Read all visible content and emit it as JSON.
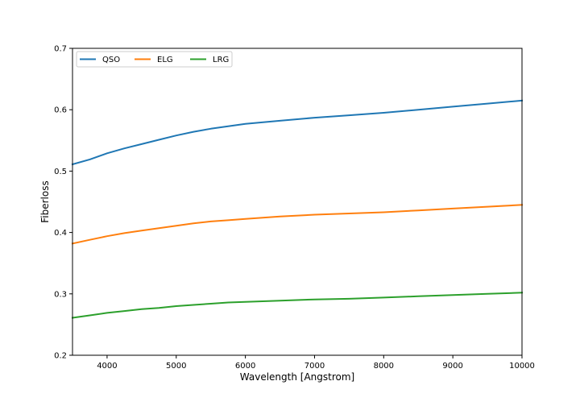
{
  "chart_data": {
    "type": "line",
    "title": "",
    "xlabel": "Wavelength [Angstrom]",
    "ylabel": "Fiberloss",
    "xlim": [
      3500,
      10000
    ],
    "ylim": [
      0.2,
      0.7
    ],
    "xticks": [
      4000,
      5000,
      6000,
      7000,
      8000,
      9000,
      10000
    ],
    "yticks": [
      0.2,
      0.3,
      0.4,
      0.5,
      0.6,
      0.7
    ],
    "grid": false,
    "legend_position": "top-left",
    "legend_columns": 3,
    "series": [
      {
        "name": "QSO",
        "color": "#1f77b4",
        "x": [
          3500,
          3750,
          4000,
          4250,
          4500,
          4750,
          5000,
          5250,
          5500,
          5750,
          6000,
          6500,
          7000,
          7500,
          8000,
          8500,
          9000,
          9500,
          10000
        ],
        "y": [
          0.511,
          0.519,
          0.529,
          0.537,
          0.544,
          0.551,
          0.558,
          0.564,
          0.569,
          0.573,
          0.577,
          0.582,
          0.587,
          0.591,
          0.595,
          0.6,
          0.605,
          0.61,
          0.615
        ]
      },
      {
        "name": "ELG",
        "color": "#ff7f0e",
        "x": [
          3500,
          3750,
          4000,
          4250,
          4500,
          4750,
          5000,
          5250,
          5500,
          5750,
          6000,
          6500,
          7000,
          7500,
          8000,
          8500,
          9000,
          9500,
          10000
        ],
        "y": [
          0.382,
          0.388,
          0.394,
          0.399,
          0.403,
          0.407,
          0.411,
          0.415,
          0.418,
          0.42,
          0.422,
          0.426,
          0.429,
          0.431,
          0.433,
          0.436,
          0.439,
          0.442,
          0.445
        ]
      },
      {
        "name": "LRG",
        "color": "#2ca02c",
        "x": [
          3500,
          3750,
          4000,
          4250,
          4500,
          4750,
          5000,
          5250,
          5500,
          5750,
          6000,
          6500,
          7000,
          7500,
          8000,
          8500,
          9000,
          9500,
          10000
        ],
        "y": [
          0.261,
          0.265,
          0.269,
          0.272,
          0.275,
          0.277,
          0.28,
          0.282,
          0.284,
          0.286,
          0.287,
          0.289,
          0.291,
          0.292,
          0.294,
          0.296,
          0.298,
          0.3,
          0.302
        ]
      }
    ]
  }
}
